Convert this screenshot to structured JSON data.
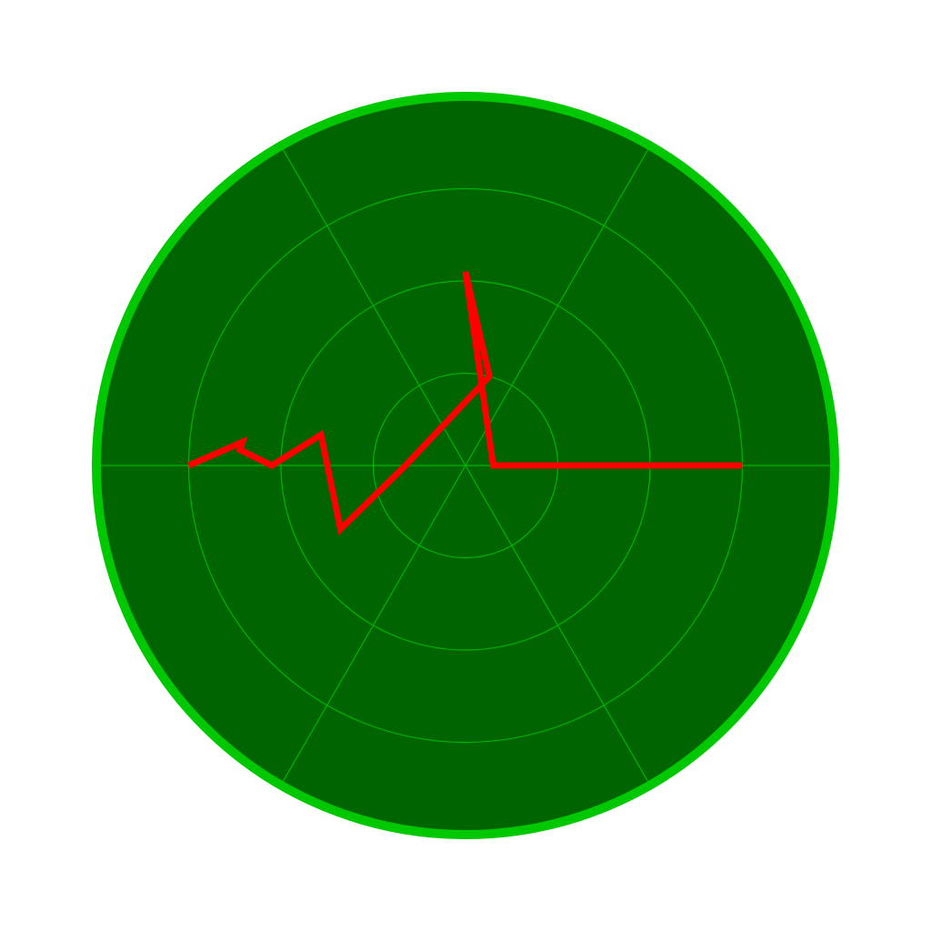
{
  "chart_data": {
    "type": "line",
    "projection": "polar",
    "theme": "radar",
    "title": "",
    "xlabel": "",
    "ylabel": "",
    "r_range": [
      0,
      4
    ],
    "r_grid": [
      1,
      2,
      3,
      4
    ],
    "theta_grid_deg": [
      0,
      60,
      120,
      180,
      240,
      300
    ],
    "grid": true,
    "legend": "none",
    "series": [
      {
        "points": [
          {
            "theta_deg": 0,
            "r": 3.0
          },
          {
            "theta_deg": 0,
            "r": 2.0
          },
          {
            "theta_deg": 0,
            "r": 1.0
          },
          {
            "theta_deg": 0,
            "r": 0.3
          },
          {
            "theta_deg": 90,
            "r": 2.1
          },
          {
            "theta_deg": 75,
            "r": 1.0
          },
          {
            "theta_deg": 180,
            "r": 0.65
          },
          {
            "theta_deg": 207,
            "r": 1.52
          },
          {
            "theta_deg": 168,
            "r": 1.6
          },
          {
            "theta_deg": 180,
            "r": 2.1
          },
          {
            "theta_deg": 176,
            "r": 2.45
          },
          {
            "theta_deg": 174,
            "r": 2.43
          },
          {
            "theta_deg": 180,
            "r": 3.0
          }
        ]
      }
    ],
    "colors": {
      "background": "#006400",
      "rim": "#00c800",
      "grid": "#00b400",
      "line": "#ff0000"
    }
  }
}
